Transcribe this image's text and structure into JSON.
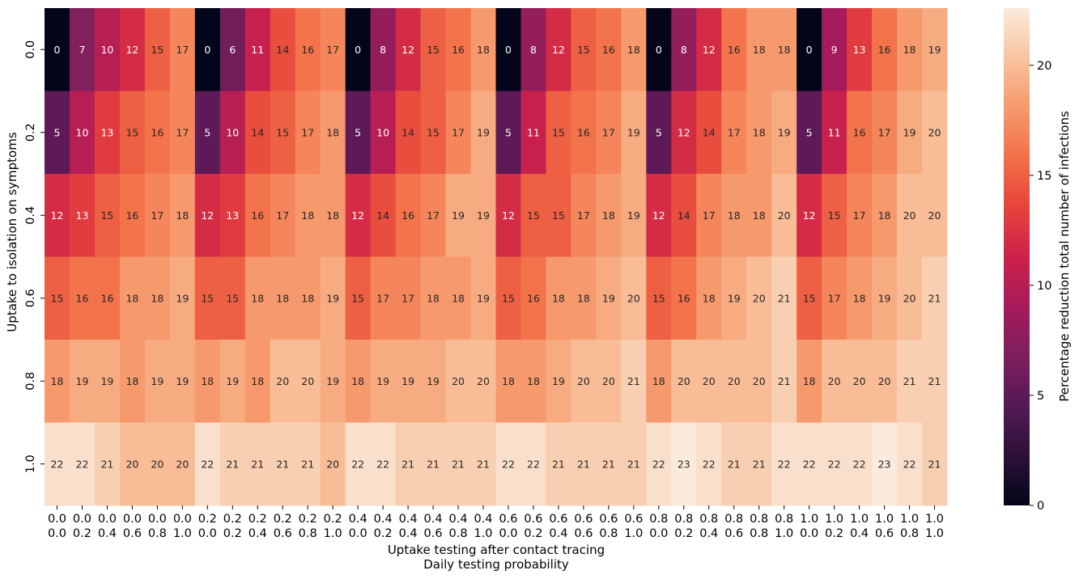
{
  "chart_data": {
    "type": "heatmap",
    "title": "",
    "ylabel": "Uptake to isolation on symptoms",
    "xlabel_lines": [
      "Uptake testing after contact tracing",
      "Daily testing probability"
    ],
    "colorbar_label": "Percentage reduction total number of infections",
    "colorbar_range": [
      0,
      22.6
    ],
    "colorbar_ticks": [
      "0",
      "5",
      "10",
      "15",
      "20"
    ],
    "colormap": "rocket",
    "y_categories": [
      "0.0",
      "0.2",
      "0.4",
      "0.6",
      "0.8",
      "1.0"
    ],
    "x_categories": [
      [
        "0.0",
        "0.0"
      ],
      [
        "0.0",
        "0.2"
      ],
      [
        "0.0",
        "0.4"
      ],
      [
        "0.0",
        "0.6"
      ],
      [
        "0.0",
        "0.8"
      ],
      [
        "0.0",
        "1.0"
      ],
      [
        "0.2",
        "0.0"
      ],
      [
        "0.2",
        "0.2"
      ],
      [
        "0.2",
        "0.4"
      ],
      [
        "0.2",
        "0.6"
      ],
      [
        "0.2",
        "0.8"
      ],
      [
        "0.2",
        "1.0"
      ],
      [
        "0.4",
        "0.0"
      ],
      [
        "0.4",
        "0.2"
      ],
      [
        "0.4",
        "0.4"
      ],
      [
        "0.4",
        "0.6"
      ],
      [
        "0.4",
        "0.8"
      ],
      [
        "0.4",
        "1.0"
      ],
      [
        "0.6",
        "0.0"
      ],
      [
        "0.6",
        "0.2"
      ],
      [
        "0.6",
        "0.4"
      ],
      [
        "0.6",
        "0.6"
      ],
      [
        "0.6",
        "0.8"
      ],
      [
        "0.6",
        "1.0"
      ],
      [
        "0.8",
        "0.0"
      ],
      [
        "0.8",
        "0.2"
      ],
      [
        "0.8",
        "0.4"
      ],
      [
        "0.8",
        "0.6"
      ],
      [
        "0.8",
        "0.8"
      ],
      [
        "0.8",
        "1.0"
      ],
      [
        "1.0",
        "0.0"
      ],
      [
        "1.0",
        "0.2"
      ],
      [
        "1.0",
        "0.4"
      ],
      [
        "1.0",
        "0.6"
      ],
      [
        "1.0",
        "0.8"
      ],
      [
        "1.0",
        "1.0"
      ]
    ],
    "values": [
      [
        0,
        7,
        10,
        12,
        15,
        17,
        0,
        6,
        11,
        14,
        16,
        17,
        0,
        8,
        12,
        15,
        16,
        18,
        0,
        8,
        12,
        15,
        16,
        18,
        0,
        8,
        12,
        16,
        18,
        18,
        0,
        9,
        13,
        16,
        18,
        19
      ],
      [
        5,
        10,
        13,
        15,
        16,
        17,
        5,
        10,
        14,
        15,
        17,
        18,
        5,
        10,
        14,
        15,
        17,
        19,
        5,
        11,
        15,
        16,
        17,
        19,
        5,
        12,
        14,
        17,
        18,
        19,
        5,
        11,
        16,
        17,
        19,
        20
      ],
      [
        12,
        13,
        15,
        16,
        17,
        18,
        12,
        13,
        16,
        17,
        18,
        18,
        12,
        14,
        16,
        17,
        19,
        19,
        12,
        15,
        15,
        17,
        18,
        19,
        12,
        14,
        17,
        18,
        18,
        20,
        12,
        15,
        17,
        18,
        20,
        20
      ],
      [
        15,
        16,
        16,
        18,
        18,
        19,
        15,
        15,
        18,
        18,
        18,
        19,
        15,
        17,
        17,
        18,
        18,
        19,
        15,
        16,
        18,
        18,
        19,
        20,
        15,
        16,
        18,
        19,
        20,
        21,
        15,
        17,
        18,
        19,
        20,
        21
      ],
      [
        18,
        19,
        19,
        18,
        19,
        19,
        18,
        19,
        18,
        20,
        20,
        19,
        18,
        19,
        19,
        19,
        20,
        20,
        18,
        18,
        19,
        20,
        20,
        21,
        18,
        20,
        20,
        20,
        20,
        21,
        18,
        20,
        20,
        20,
        21,
        21
      ],
      [
        22,
        22,
        21,
        20,
        20,
        20,
        22,
        21,
        21,
        21,
        21,
        20,
        22,
        22,
        21,
        21,
        21,
        21,
        22,
        22,
        21,
        21,
        21,
        21,
        22,
        23,
        22,
        21,
        21,
        22,
        22,
        22,
        22,
        23,
        22,
        21
      ]
    ],
    "grid": false,
    "legend": "colorbar-right"
  }
}
